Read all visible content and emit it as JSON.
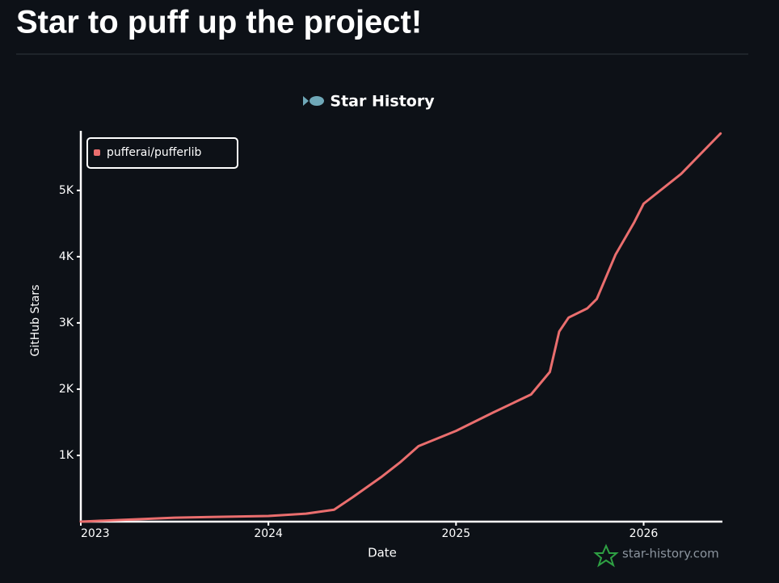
{
  "header": {
    "title": "Star to puff up the project!"
  },
  "chart_data": {
    "type": "line",
    "title": "Star History",
    "x_label": "Date",
    "y_label": "GitHub Stars",
    "watermark": "star-history.com",
    "x": [
      2023.0,
      2023.5,
      2024.0,
      2024.2,
      2024.35,
      2024.45,
      2024.6,
      2024.7,
      2024.8,
      2025.0,
      2025.2,
      2025.4,
      2025.5,
      2025.55,
      2025.6,
      2025.7,
      2025.75,
      2025.85,
      2025.95,
      2026.0,
      2026.2,
      2026.41
    ],
    "series": [
      {
        "name": "pufferai/pufferlib",
        "color": "#ea6e6e",
        "values": [
          0,
          60,
          85,
          120,
          180,
          370,
          670,
          890,
          1140,
          1370,
          1650,
          1920,
          2260,
          2870,
          3080,
          3220,
          3360,
          4030,
          4520,
          4800,
          5250,
          5860
        ]
      }
    ],
    "xlim": [
      2023,
      2026.42
    ],
    "xticks": [
      2023,
      2024,
      2025,
      2026
    ],
    "ylim": [
      0,
      5900
    ],
    "yticks": [
      {
        "value": 1000,
        "label": "1K"
      },
      {
        "value": 2000,
        "label": "2K"
      },
      {
        "value": 3000,
        "label": "3K"
      },
      {
        "value": 4000,
        "label": "4K"
      },
      {
        "value": 5000,
        "label": "5K"
      }
    ],
    "legend": "upper left",
    "grid": false
  }
}
